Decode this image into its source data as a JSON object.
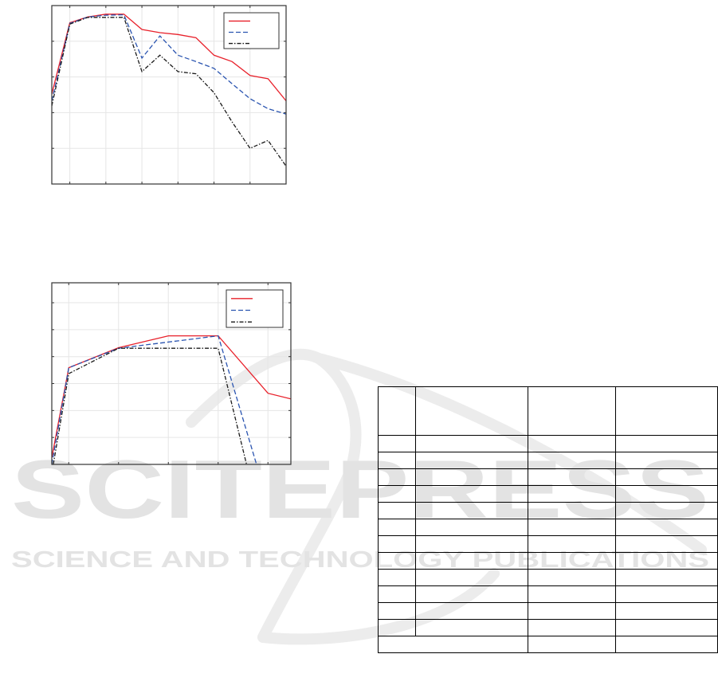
{
  "watermark": {
    "brand": "SCITEPRESS",
    "tagline": "SCIENCE AND TECHNOLOGY PUBLICATIONS",
    "color": "#e3e3e3"
  },
  "chart_data": [
    {
      "type": "line",
      "title": "",
      "xlabel": "",
      "ylabel": "",
      "xlim": [
        0.5,
        7
      ],
      "ylim": [
        0,
        5
      ],
      "xticks": [
        1,
        2,
        3,
        4,
        5,
        6
      ],
      "yticks": [
        1,
        2,
        3,
        4
      ],
      "grid": true,
      "legend": "top-right",
      "x": [
        0.5,
        1,
        1.5,
        2,
        2.5,
        3,
        3.5,
        4,
        4.5,
        5,
        5.5,
        6,
        6.5,
        7
      ],
      "series": [
        {
          "color": "#e8202a",
          "style": "solid",
          "values": [
            2.52,
            4.52,
            4.68,
            4.76,
            4.76,
            4.33,
            4.24,
            4.19,
            4.1,
            3.61,
            3.43,
            3.04,
            2.95,
            2.33
          ]
        },
        {
          "color": "#2a54b0",
          "style": "dashed",
          "values": [
            2.33,
            4.5,
            4.68,
            4.73,
            4.74,
            3.53,
            4.15,
            3.61,
            3.43,
            3.24,
            2.81,
            2.39,
            2.11,
            1.96
          ]
        },
        {
          "color": "#1a1a1a",
          "style": "dashdot",
          "values": [
            2.19,
            4.48,
            4.67,
            4.67,
            4.67,
            3.15,
            3.61,
            3.15,
            3.09,
            2.56,
            1.74,
            1.0,
            1.22,
            0.5
          ]
        }
      ]
    },
    {
      "type": "line",
      "title": "",
      "xlabel": "",
      "ylabel": "",
      "xlim": [
        0.66,
        5.46
      ],
      "ylim": [
        0,
        6.74
      ],
      "xticks": [
        1,
        2,
        3,
        4,
        5
      ],
      "yticks": [
        1,
        2,
        3,
        4,
        5,
        6
      ],
      "grid": true,
      "legend": "top-right",
      "series": [
        {
          "color": "#e8202a",
          "style": "solid",
          "x": [
            0.66,
            1,
            2,
            3,
            4,
            5,
            5.46
          ],
          "values": [
            0.25,
            3.59,
            4.33,
            4.77,
            4.77,
            2.64,
            2.43
          ]
        },
        {
          "color": "#2a54b0",
          "style": "dashed",
          "x": [
            0.66,
            1,
            2,
            3,
            4,
            4.77
          ],
          "values": [
            0,
            3.59,
            4.31,
            4.54,
            4.77,
            0
          ]
        },
        {
          "color": "#1a1a1a",
          "style": "dashdot",
          "x": [
            0.69,
            1,
            2,
            3,
            4,
            4.57
          ],
          "values": [
            0,
            3.37,
            4.31,
            4.31,
            4.31,
            0
          ]
        }
      ]
    }
  ],
  "table": {
    "header": [
      "",
      "",
      "",
      ""
    ],
    "rows": [
      [
        "",
        "",
        "",
        ""
      ],
      [
        "",
        "",
        "",
        ""
      ],
      [
        "",
        "",
        "",
        ""
      ],
      [
        "",
        "",
        "",
        ""
      ],
      [
        "",
        "",
        "",
        ""
      ],
      [
        "",
        "",
        "",
        ""
      ],
      [
        "",
        "",
        "",
        ""
      ],
      [
        "",
        "",
        "",
        ""
      ],
      [
        "",
        "",
        "",
        ""
      ],
      [
        "",
        "",
        "",
        ""
      ],
      [
        "",
        "",
        "",
        ""
      ],
      [
        "",
        "",
        "",
        ""
      ]
    ],
    "total_row": [
      "",
      "",
      ""
    ]
  }
}
